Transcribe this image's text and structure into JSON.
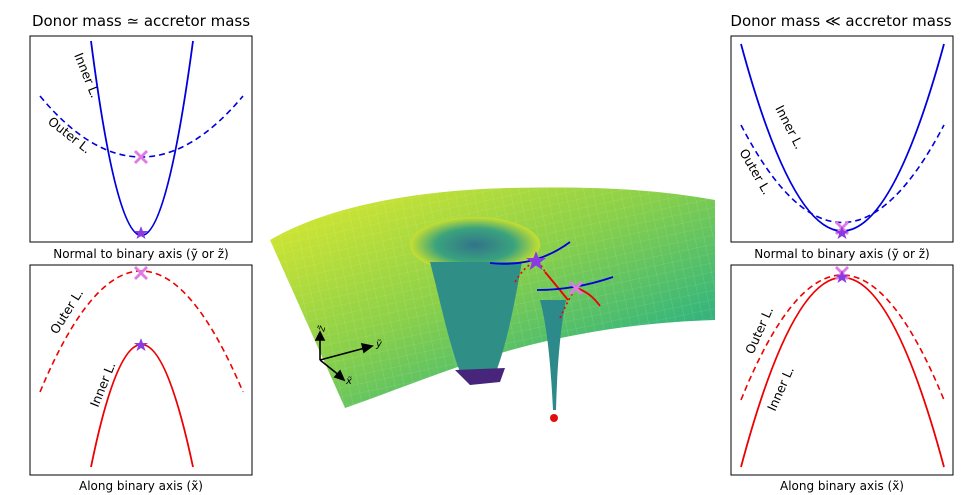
{
  "titles": {
    "left": "Donor mass ≃ accretor mass",
    "right": "Donor mass ≪ accretor mass"
  },
  "captions": {
    "normal": "Normal to binary axis (ỹ or z̃)",
    "along": "Along binary axis (x̃)"
  },
  "labels": {
    "inner": "Inner L.",
    "outer": "Outer L."
  },
  "axes3d": {
    "x": "x̃",
    "y": "ỹ",
    "z": "z̃"
  },
  "colors": {
    "normal_curves": "#0000dd",
    "along_curves": "#ee0000",
    "inner_marker": "#8a3be0",
    "outer_marker": "#e07ae6",
    "surface_light": "#e0ea30",
    "surface_mid": "#3cb878",
    "surface_dark": "#277f8e",
    "deep_well": "#46257a"
  },
  "markers": {
    "inner_shape": "star",
    "outer_shape": "cross"
  }
}
